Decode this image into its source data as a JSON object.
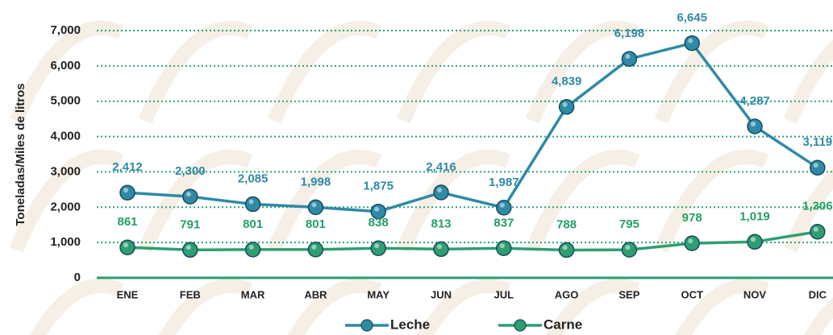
{
  "chart_data": {
    "type": "line",
    "y_label": "Toneladas/Miles de litros",
    "categories": [
      "ENE",
      "FEB",
      "MAR",
      "ABR",
      "MAY",
      "JUN",
      "JUL",
      "AGO",
      "SEP",
      "OCT",
      "NOV",
      "DIC"
    ],
    "series": [
      {
        "name": "Leche",
        "color": "#2f8aa6",
        "label_color": "#2f8aa6",
        "values": [
          2412,
          2300,
          2085,
          1998,
          1875,
          2416,
          1987,
          4839,
          6198,
          6645,
          4287,
          3119
        ],
        "value_labels": [
          "2,412",
          "2,300",
          "2,085",
          "1,998",
          "1,875",
          "2,416",
          "1,987",
          "4,839",
          "6,198",
          "6,645",
          "4,287",
          "3,119"
        ]
      },
      {
        "name": "Carne",
        "color": "#2e9e72",
        "label_color": "#22a064",
        "values": [
          861,
          791,
          801,
          801,
          838,
          813,
          837,
          788,
          795,
          978,
          1019,
          1306
        ],
        "value_labels": [
          "861",
          "791",
          "801",
          "801",
          "838",
          "813",
          "837",
          "788",
          "795",
          "978",
          "1,019",
          "1,306"
        ]
      }
    ],
    "ylim": [
      0,
      7000
    ],
    "yticks": [
      0,
      {
        "value": 1000,
        "label": "1,000"
      },
      {
        "value": 2000,
        "label": "2,000"
      },
      {
        "value": 3000,
        "label": "3,000"
      },
      {
        "value": 4000,
        "label": "4,000"
      },
      {
        "value": 5000,
        "label": "5,000"
      },
      {
        "value": 6000,
        "label": "6,000"
      },
      {
        "value": 7000,
        "label": "7,000"
      }
    ],
    "grid": true
  }
}
